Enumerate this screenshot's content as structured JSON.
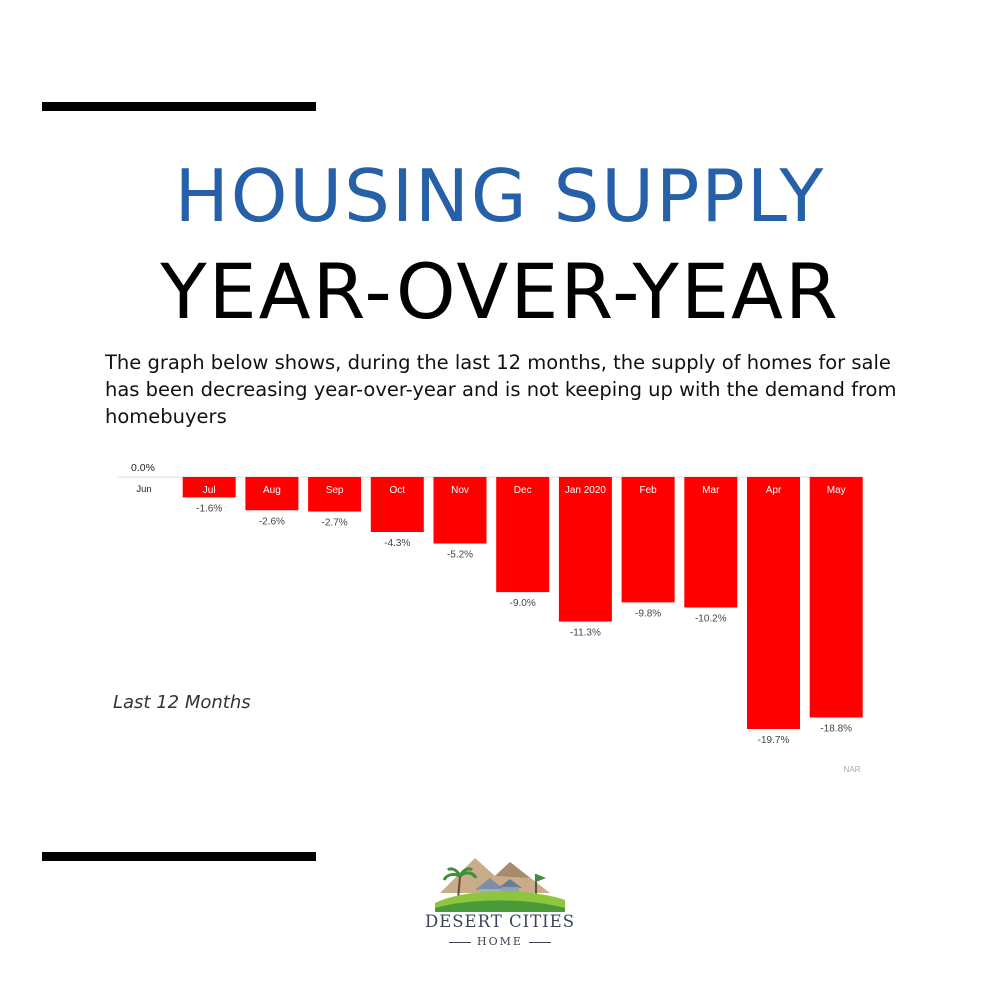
{
  "header": {
    "title_line1": "HOUSING SUPPLY",
    "title_line2": "YEAR-OVER-YEAR",
    "description": "The graph below shows, during the last 12 months, the supply of homes for sale has been decreasing year-over-year and is not keeping up with the demand from homebuyers"
  },
  "chart_note": "Last 12 Months",
  "chart_data": {
    "type": "bar",
    "categories": [
      "Jun",
      "Jul",
      "Aug",
      "Sep",
      "Oct",
      "Nov",
      "Dec",
      "Jan 2020",
      "Feb",
      "Mar",
      "Apr",
      "May"
    ],
    "values": [
      0.0,
      -1.6,
      -2.6,
      -2.7,
      -4.3,
      -5.2,
      -9.0,
      -11.3,
      -9.8,
      -10.2,
      -19.7,
      -18.8
    ],
    "value_labels": [
      "0.0%",
      "-1.6%",
      "-2.6%",
      "-2.7%",
      "-4.3%",
      "-5.2%",
      "-9.0%",
      "-11.3%",
      "-9.8%",
      "-10.2%",
      "-19.7%",
      "-18.8%"
    ],
    "ylim": [
      -19.7,
      0
    ],
    "source": "NAR",
    "bar_color": "#ff0000"
  },
  "brand": {
    "name": "DESERT CITIES",
    "sub": "HOME"
  },
  "colors": {
    "title_blue": "#2560a8",
    "bar_red": "#ff0000"
  }
}
